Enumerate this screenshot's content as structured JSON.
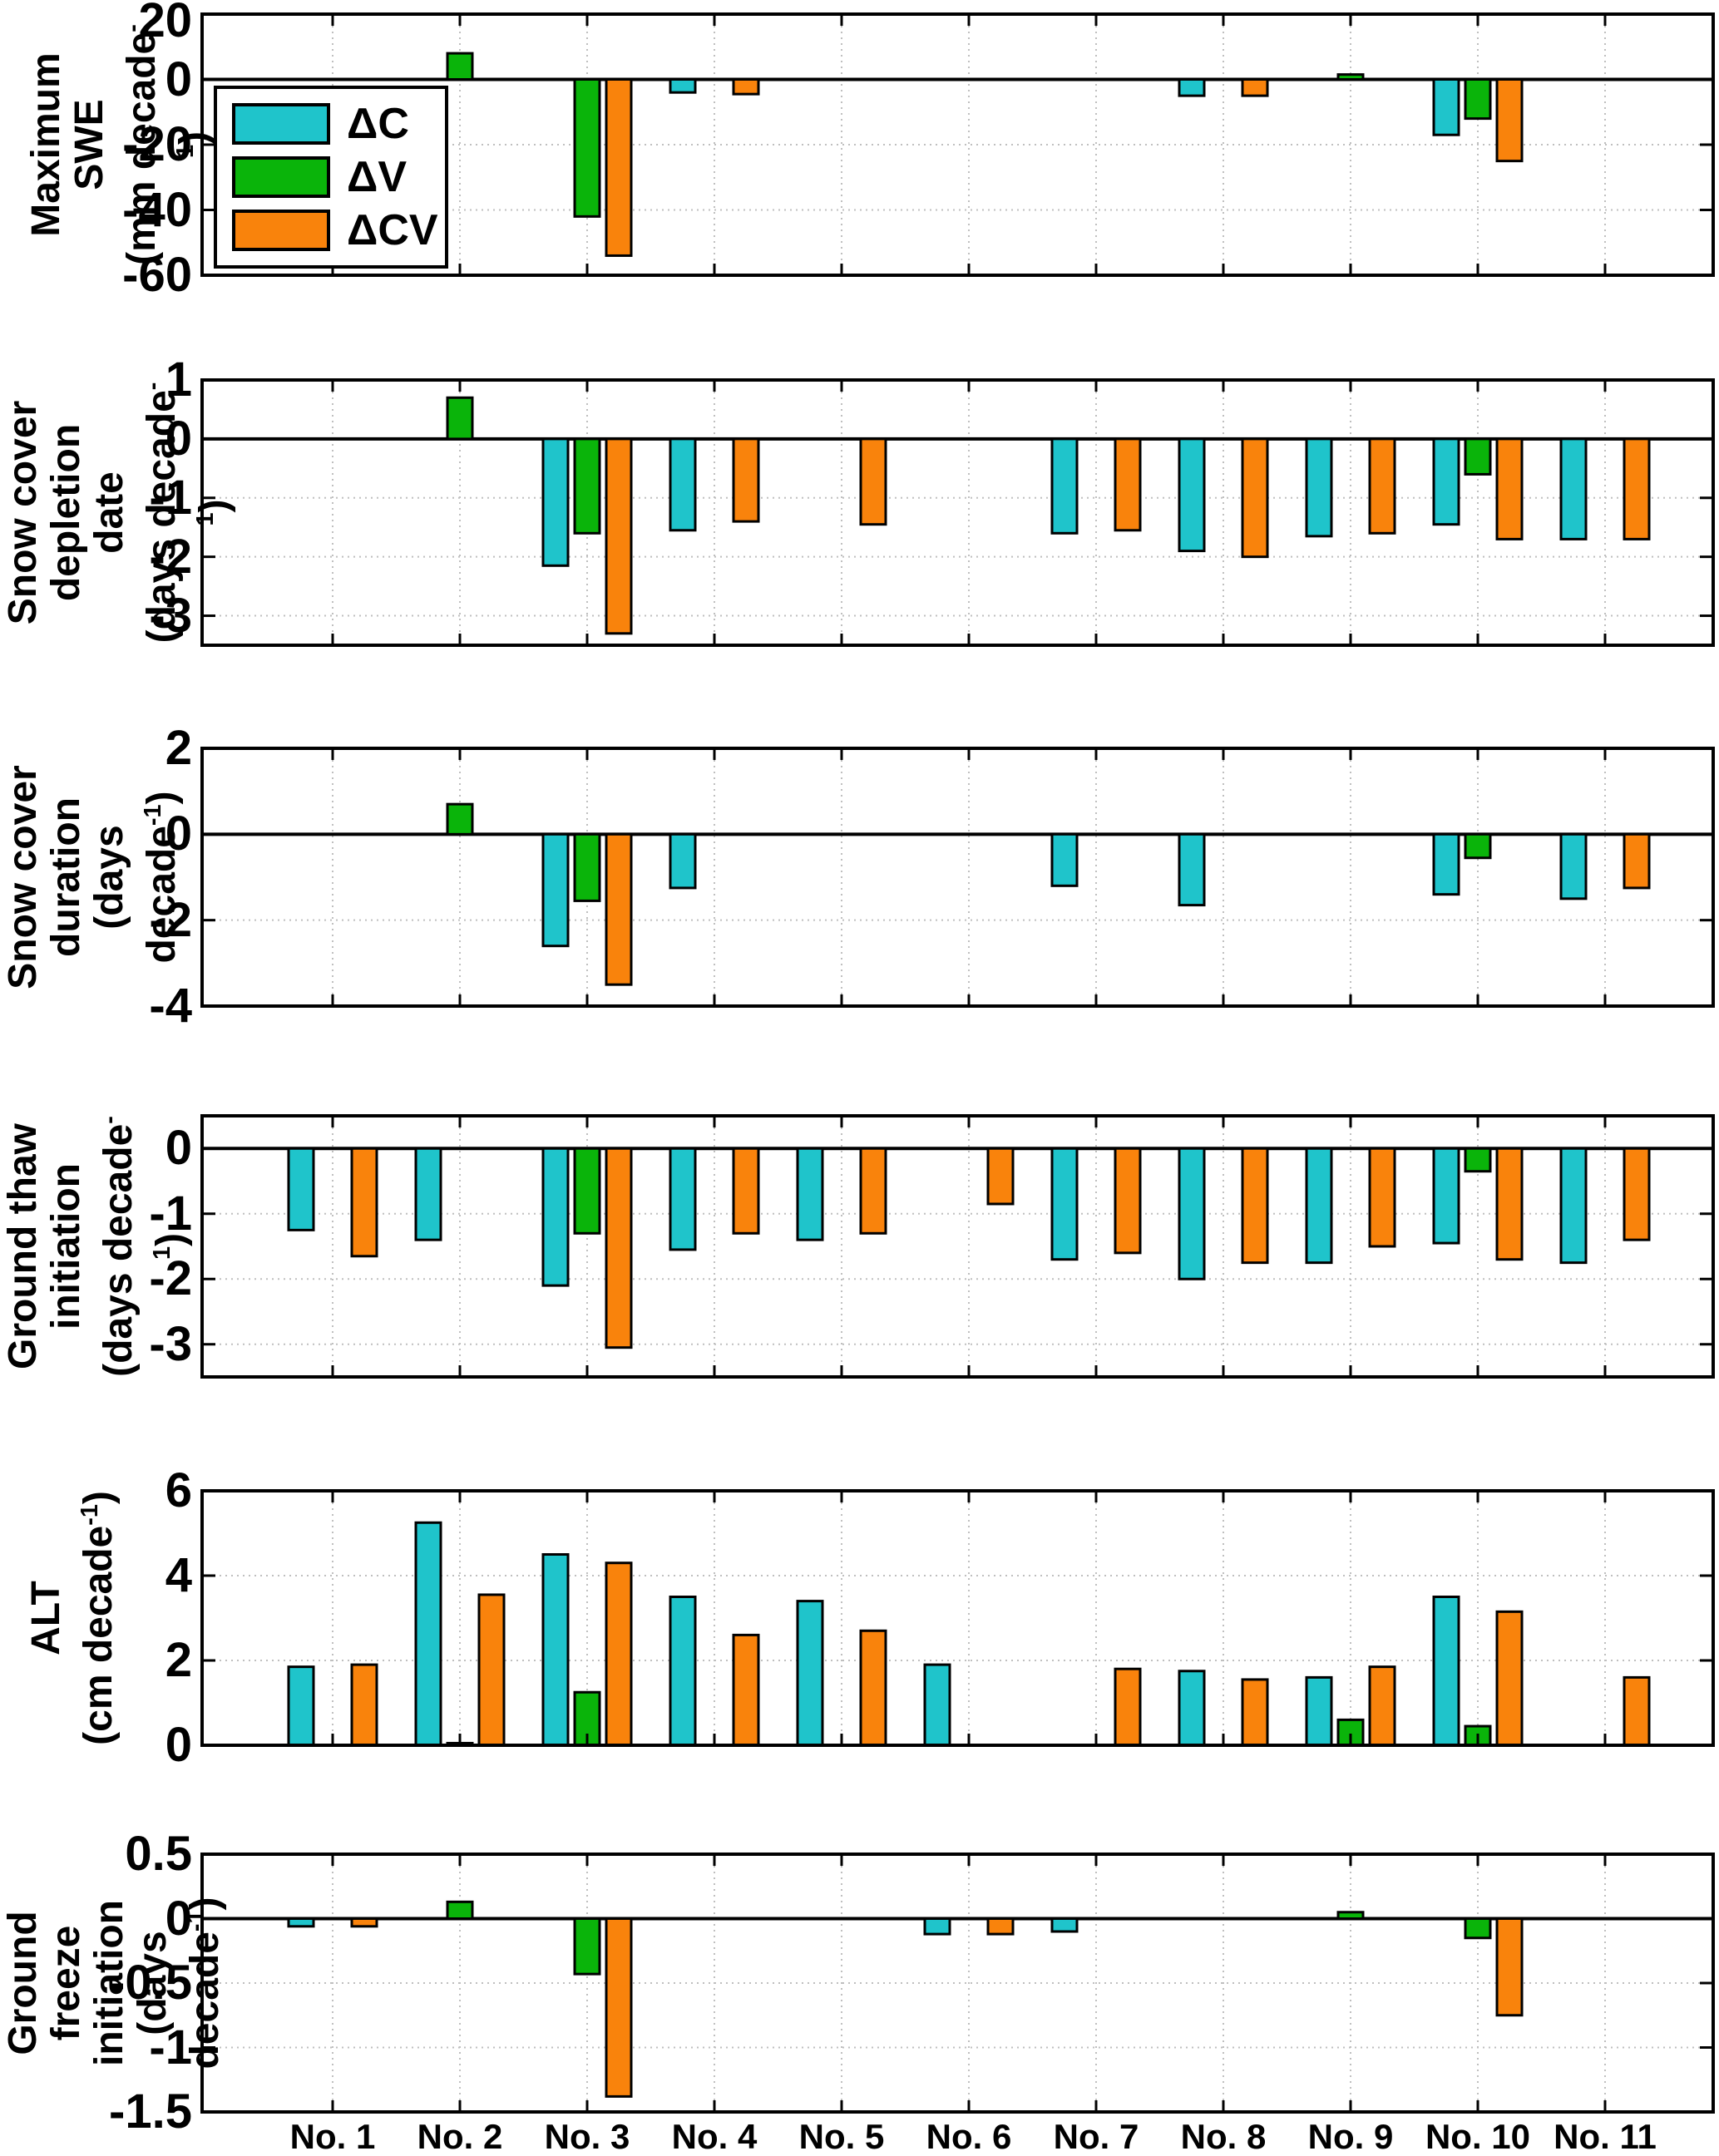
{
  "figure": {
    "background": "#ffffff"
  },
  "legend": {
    "items": [
      {
        "label": "ΔC",
        "color": "#1FC4CB"
      },
      {
        "label": "ΔV",
        "color": "#0AB40A"
      },
      {
        "label": "ΔCV",
        "color": "#F9830C"
      }
    ]
  },
  "chart_data": {
    "type": "bar",
    "grid": true,
    "legend_position": "upper-left inside first panel",
    "categories": [
      "No. 1",
      "No. 2",
      "No. 3",
      "No. 4",
      "No. 5",
      "No. 6",
      "No. 7",
      "No. 8",
      "No. 9",
      "No. 10",
      "No. 11"
    ],
    "series_names": [
      "ΔC",
      "ΔV",
      "ΔCV"
    ],
    "series_colors": {
      "ΔC": "#1FC4CB",
      "ΔV": "#0AB40A",
      "ΔCV": "#F9830C"
    },
    "bar_edge_color": "#000000",
    "panels": [
      {
        "ylabel_lines": [
          "Maximum SWE",
          "(mm decade^-1)"
        ],
        "ylim": [
          -60,
          20
        ],
        "yticks": [
          20,
          0,
          -20,
          -40,
          -60
        ],
        "series": [
          {
            "name": "ΔC",
            "values": [
              null,
              null,
              null,
              -4,
              null,
              null,
              null,
              -5,
              null,
              -17,
              null
            ]
          },
          {
            "name": "ΔV",
            "values": [
              null,
              8,
              -42,
              null,
              null,
              null,
              null,
              null,
              1.5,
              -12,
              null
            ]
          },
          {
            "name": "ΔCV",
            "values": [
              null,
              null,
              -54,
              -4.5,
              null,
              null,
              null,
              -5,
              null,
              -25,
              null
            ]
          }
        ]
      },
      {
        "ylabel_lines": [
          "Snow cover",
          "depletion date",
          "(days decade^-1)"
        ],
        "ylim": [
          -3.5,
          1
        ],
        "yticks": [
          1,
          0,
          -1,
          -2,
          -3
        ],
        "series": [
          {
            "name": "ΔC",
            "values": [
              null,
              null,
              -2.15,
              -1.55,
              null,
              null,
              -1.6,
              -1.9,
              -1.65,
              -1.45,
              -1.7
            ]
          },
          {
            "name": "ΔV",
            "values": [
              null,
              0.7,
              -1.6,
              null,
              null,
              null,
              null,
              null,
              null,
              -0.6,
              null
            ]
          },
          {
            "name": "ΔCV",
            "values": [
              null,
              null,
              -3.3,
              -1.4,
              -1.45,
              null,
              -1.55,
              -2.0,
              -1.6,
              -1.7,
              -1.7
            ]
          }
        ]
      },
      {
        "ylabel_lines": [
          "Snow cover",
          "duration",
          "(days decade^-1)"
        ],
        "ylim": [
          -4,
          2
        ],
        "yticks": [
          2,
          0,
          -2,
          -4
        ],
        "series": [
          {
            "name": "ΔC",
            "values": [
              null,
              null,
              -2.6,
              -1.25,
              null,
              null,
              -1.2,
              -1.65,
              null,
              -1.4,
              -1.5
            ]
          },
          {
            "name": "ΔV",
            "values": [
              null,
              0.7,
              -1.55,
              null,
              null,
              null,
              null,
              null,
              null,
              -0.55,
              null
            ]
          },
          {
            "name": "ΔCV",
            "values": [
              null,
              null,
              -3.5,
              null,
              null,
              null,
              null,
              null,
              null,
              null,
              -1.25
            ]
          }
        ]
      },
      {
        "ylabel_lines": [
          "Ground thaw",
          "initiation",
          "(days decade^-1)"
        ],
        "ylim": [
          -3.5,
          0.5
        ],
        "yticks": [
          0,
          -1,
          -2,
          -3
        ],
        "series": [
          {
            "name": "ΔC",
            "values": [
              -1.25,
              -1.4,
              -2.1,
              -1.55,
              -1.4,
              null,
              -1.7,
              -2.0,
              -1.75,
              -1.45,
              -1.75
            ]
          },
          {
            "name": "ΔV",
            "values": [
              null,
              null,
              -1.3,
              null,
              null,
              null,
              null,
              null,
              null,
              -0.35,
              null
            ]
          },
          {
            "name": "ΔCV",
            "values": [
              -1.65,
              null,
              -3.05,
              -1.3,
              -1.3,
              -0.85,
              -1.6,
              -1.75,
              -1.5,
              -1.7,
              -1.4
            ]
          }
        ]
      },
      {
        "ylabel_lines": [
          "ALT",
          "(cm decade^-1)"
        ],
        "ylim": [
          0,
          6
        ],
        "yticks": [
          6,
          4,
          2,
          0
        ],
        "series": [
          {
            "name": "ΔC",
            "values": [
              1.85,
              5.25,
              4.5,
              3.5,
              3.4,
              1.9,
              null,
              1.75,
              1.6,
              3.5,
              null
            ]
          },
          {
            "name": "ΔV",
            "values": [
              null,
              0.05,
              1.25,
              null,
              null,
              null,
              null,
              null,
              0.6,
              0.45,
              null
            ]
          },
          {
            "name": "ΔCV",
            "values": [
              1.9,
              3.55,
              4.3,
              2.6,
              2.7,
              null,
              1.8,
              1.55,
              1.85,
              3.15,
              1.6
            ]
          }
        ]
      },
      {
        "ylabel_lines": [
          "Ground freeze",
          "initiation",
          "(days decade^-1)"
        ],
        "ylim": [
          -1.5,
          0.5
        ],
        "yticks": [
          0.5,
          0,
          -0.5,
          -1,
          -1.5
        ],
        "series": [
          {
            "name": "ΔC",
            "values": [
              -0.06,
              null,
              null,
              null,
              null,
              -0.12,
              -0.1,
              null,
              null,
              null,
              null
            ]
          },
          {
            "name": "ΔV",
            "values": [
              null,
              0.13,
              -0.43,
              null,
              null,
              null,
              null,
              null,
              0.05,
              -0.15,
              null
            ]
          },
          {
            "name": "ΔCV",
            "values": [
              -0.06,
              null,
              -1.38,
              null,
              null,
              -0.12,
              null,
              null,
              null,
              -0.75,
              null
            ]
          }
        ]
      }
    ]
  }
}
